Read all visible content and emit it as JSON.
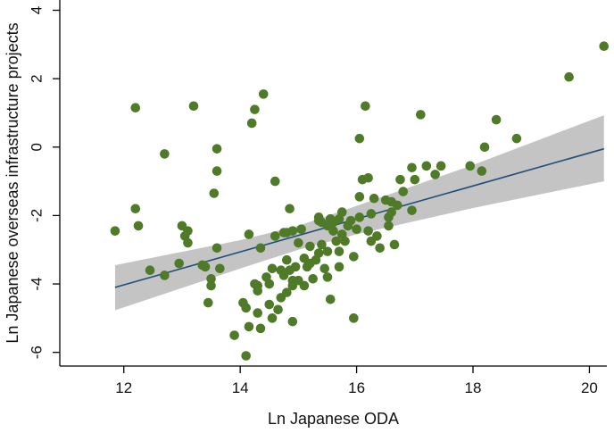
{
  "chart_data": {
    "type": "scatter",
    "title": "",
    "xlabel": "Ln Japanese ODA",
    "ylabel": "Ln Japanese overseas infrastructure projects",
    "xlim": [
      10.9,
      20.3
    ],
    "ylim": [
      -6.4,
      4.3
    ],
    "x_ticks": [
      12,
      14,
      16,
      18,
      20
    ],
    "x_tick_labels": [
      "12",
      "14",
      "16",
      "18",
      "20"
    ],
    "y_ticks": [
      -6,
      -4,
      -2,
      0,
      2,
      4
    ],
    "y_tick_labels": [
      "-6",
      "-4",
      "-2",
      "0",
      "2",
      "4"
    ],
    "grid": false,
    "colors": {
      "points": "#4f7a28",
      "fit_line": "#1f4e79",
      "ci_band": "#c4c4c4",
      "axis": "#000000"
    },
    "fit_line": {
      "x": [
        11.85,
        20.25
      ],
      "y": [
        -4.1,
        -0.05
      ]
    },
    "ci_band": {
      "x": [
        11.85,
        14.0,
        15.0,
        16.0,
        18.0,
        20.25
      ],
      "upper": [
        -3.45,
        -2.72,
        -2.3,
        -1.72,
        -0.52,
        0.93
      ],
      "lower": [
        -4.77,
        -3.55,
        -3.0,
        -2.55,
        -1.78,
        -1.0
      ]
    },
    "points": [
      [
        11.85,
        -2.45
      ],
      [
        12.2,
        1.15
      ],
      [
        12.2,
        -1.8
      ],
      [
        12.25,
        -2.3
      ],
      [
        12.45,
        -3.6
      ],
      [
        12.7,
        -0.2
      ],
      [
        12.7,
        -3.75
      ],
      [
        12.95,
        -3.4
      ],
      [
        13.0,
        -2.3
      ],
      [
        13.05,
        -2.6
      ],
      [
        13.1,
        -2.8
      ],
      [
        13.1,
        -2.45
      ],
      [
        13.2,
        1.2
      ],
      [
        13.35,
        -3.45
      ],
      [
        13.4,
        -3.5
      ],
      [
        13.45,
        -4.55
      ],
      [
        13.5,
        -3.85
      ],
      [
        13.5,
        -4.05
      ],
      [
        13.55,
        -1.35
      ],
      [
        13.6,
        -0.05
      ],
      [
        13.6,
        -0.7
      ],
      [
        13.65,
        -3.55
      ],
      [
        13.6,
        -2.95
      ],
      [
        13.9,
        -5.5
      ],
      [
        14.05,
        -4.55
      ],
      [
        14.1,
        -6.1
      ],
      [
        14.1,
        -4.7
      ],
      [
        14.15,
        -5.25
      ],
      [
        14.15,
        -2.55
      ],
      [
        14.2,
        0.7
      ],
      [
        14.25,
        1.1
      ],
      [
        14.25,
        -4.0
      ],
      [
        14.3,
        -4.05
      ],
      [
        14.3,
        -4.85
      ],
      [
        14.3,
        -4.2
      ],
      [
        14.35,
        -2.95
      ],
      [
        14.35,
        -5.3
      ],
      [
        14.4,
        1.55
      ],
      [
        14.45,
        -3.8
      ],
      [
        14.5,
        -4.0
      ],
      [
        14.5,
        -4.6
      ],
      [
        14.55,
        -3.55
      ],
      [
        14.55,
        -5.0
      ],
      [
        14.6,
        -1.0
      ],
      [
        14.6,
        -2.6
      ],
      [
        14.65,
        -4.75
      ],
      [
        14.7,
        -4.4
      ],
      [
        14.7,
        -3.6
      ],
      [
        14.75,
        -2.5
      ],
      [
        14.75,
        -3.75
      ],
      [
        14.8,
        -2.5
      ],
      [
        14.8,
        -3.3
      ],
      [
        14.8,
        -4.25
      ],
      [
        14.85,
        -1.8
      ],
      [
        14.85,
        -3.6
      ],
      [
        14.9,
        -3.9
      ],
      [
        14.9,
        -4.05
      ],
      [
        14.9,
        -2.45
      ],
      [
        14.9,
        -5.1
      ],
      [
        14.95,
        -3.5
      ],
      [
        15.0,
        -2.8
      ],
      [
        15.0,
        -3.9
      ],
      [
        15.05,
        -2.4
      ],
      [
        15.1,
        -3.25
      ],
      [
        15.1,
        -4.05
      ],
      [
        15.15,
        -3.5
      ],
      [
        15.2,
        -2.9
      ],
      [
        15.2,
        -3.4
      ],
      [
        15.25,
        -3.85
      ],
      [
        15.3,
        -3.3
      ],
      [
        15.35,
        -3.1
      ],
      [
        15.35,
        -2.15
      ],
      [
        15.35,
        -2.05
      ],
      [
        15.4,
        -2.2
      ],
      [
        15.4,
        -2.85
      ],
      [
        15.45,
        -3.55
      ],
      [
        15.5,
        -3.05
      ],
      [
        15.5,
        -2.3
      ],
      [
        15.5,
        -3.8
      ],
      [
        15.55,
        -4.45
      ],
      [
        15.55,
        -2.1
      ],
      [
        15.6,
        -2.2
      ],
      [
        15.6,
        -2.45
      ],
      [
        15.65,
        -2.75
      ],
      [
        15.7,
        -3.05
      ],
      [
        15.7,
        -3.5
      ],
      [
        15.7,
        -2.1
      ],
      [
        15.75,
        -2.55
      ],
      [
        15.75,
        -1.9
      ],
      [
        15.8,
        -2.75
      ],
      [
        15.85,
        -2.3
      ],
      [
        15.9,
        -2.15
      ],
      [
        15.95,
        -3.2
      ],
      [
        15.95,
        -5.0
      ],
      [
        16.0,
        -2.4
      ],
      [
        16.05,
        0.25
      ],
      [
        16.05,
        -1.45
      ],
      [
        16.05,
        -2.05
      ],
      [
        16.1,
        -0.95
      ],
      [
        16.15,
        1.2
      ],
      [
        16.2,
        -0.9
      ],
      [
        16.2,
        -2.45
      ],
      [
        16.25,
        -1.95
      ],
      [
        16.25,
        -2.75
      ],
      [
        16.3,
        -1.5
      ],
      [
        16.35,
        -2.6
      ],
      [
        16.4,
        -2.95
      ],
      [
        16.5,
        -1.55
      ],
      [
        16.55,
        -2.3
      ],
      [
        16.55,
        -2.05
      ],
      [
        16.6,
        -1.6
      ],
      [
        16.6,
        -1.9
      ],
      [
        16.65,
        -2.85
      ],
      [
        16.7,
        -1.7
      ],
      [
        16.75,
        -0.95
      ],
      [
        16.8,
        -1.3
      ],
      [
        16.95,
        -0.6
      ],
      [
        16.95,
        -1.85
      ],
      [
        17.0,
        -0.95
      ],
      [
        17.1,
        0.95
      ],
      [
        17.2,
        -0.55
      ],
      [
        17.35,
        -0.8
      ],
      [
        17.45,
        -0.55
      ],
      [
        17.95,
        -0.55
      ],
      [
        18.15,
        -0.7
      ],
      [
        18.2,
        0.0
      ],
      [
        18.4,
        0.8
      ],
      [
        18.75,
        0.25
      ],
      [
        19.65,
        2.05
      ],
      [
        20.25,
        2.95
      ]
    ]
  }
}
